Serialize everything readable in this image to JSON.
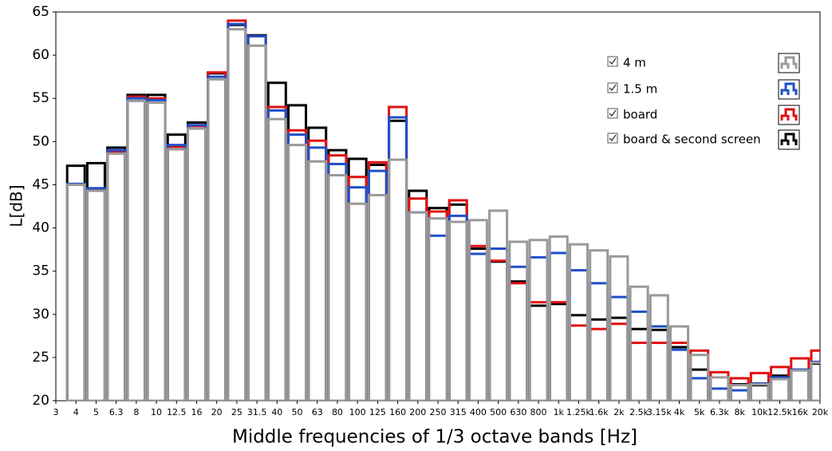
{
  "chart_data": {
    "type": "bar",
    "xlabel": "Middle frequencies of 1/3 octave bands [Hz]",
    "ylabel": "L[dB]",
    "categories": [
      "3",
      "4",
      "5",
      "6.3",
      "8",
      "10",
      "12.5",
      "16",
      "20",
      "25",
      "31.5",
      "40",
      "50",
      "63",
      "80",
      "100",
      "125",
      "160",
      "200",
      "250",
      "315",
      "400",
      "500",
      "630",
      "800",
      "1k",
      "1.25k",
      "1.6k",
      "2k",
      "2.5k",
      "3.15k",
      "4k",
      "5k",
      "6.3k",
      "8k",
      "10k",
      "12.5k",
      "16k",
      "20k"
    ],
    "series": [
      {
        "name": "4 m",
        "color": "#999999",
        "values": [
          null,
          45.0,
          44.3,
          48.6,
          54.7,
          54.5,
          49.1,
          51.5,
          57.2,
          63.0,
          61.1,
          52.6,
          49.6,
          47.7,
          46.1,
          42.8,
          43.8,
          47.9,
          41.8,
          41.1,
          40.7,
          40.9,
          42.0,
          38.4,
          38.6,
          39.0,
          38.1,
          37.4,
          36.7,
          33.2,
          32.2,
          28.6,
          25.3,
          22.7,
          21.8,
          21.9,
          22.5,
          23.5,
          24.4
        ]
      },
      {
        "name": "1.5 m",
        "color": "#1f4fc8",
        "values": [
          null,
          45.1,
          44.6,
          49.0,
          55.0,
          54.8,
          49.6,
          51.9,
          57.5,
          63.6,
          62.2,
          53.6,
          50.8,
          49.3,
          47.4,
          44.7,
          46.6,
          52.8,
          41.8,
          39.1,
          41.4,
          37.0,
          37.6,
          35.5,
          36.6,
          37.1,
          35.1,
          33.6,
          32.0,
          30.3,
          28.6,
          25.9,
          22.6,
          21.4,
          21.2,
          22.0,
          22.7,
          23.6,
          24.5
        ]
      },
      {
        "name": "board",
        "color": "#e01010",
        "values": [
          null,
          45.0,
          44.4,
          48.8,
          55.2,
          55.0,
          49.4,
          51.8,
          58.0,
          64.0,
          62.2,
          54.0,
          51.3,
          50.1,
          48.4,
          45.9,
          47.6,
          54.0,
          43.4,
          41.9,
          43.2,
          37.9,
          36.2,
          33.6,
          31.4,
          31.4,
          28.7,
          28.3,
          28.9,
          26.7,
          26.7,
          26.7,
          25.8,
          23.3,
          22.6,
          23.2,
          23.9,
          24.9,
          25.8
        ]
      },
      {
        "name": "board & second screen",
        "color": "#000000",
        "values": [
          null,
          47.2,
          47.5,
          49.3,
          55.4,
          55.4,
          50.8,
          52.2,
          57.9,
          63.5,
          62.3,
          56.8,
          54.2,
          51.6,
          49.0,
          48.0,
          47.3,
          52.4,
          44.3,
          42.3,
          42.7,
          37.6,
          36.1,
          33.8,
          31.0,
          31.2,
          29.9,
          29.4,
          29.6,
          28.3,
          28.2,
          26.2,
          23.6,
          20.0,
          21.9,
          21.8,
          22.9,
          23.6,
          24.3
        ]
      }
    ],
    "ylim": [
      20,
      65
    ],
    "yticks": [
      20,
      25,
      30,
      35,
      40,
      45,
      50,
      55,
      60,
      65
    ]
  }
}
